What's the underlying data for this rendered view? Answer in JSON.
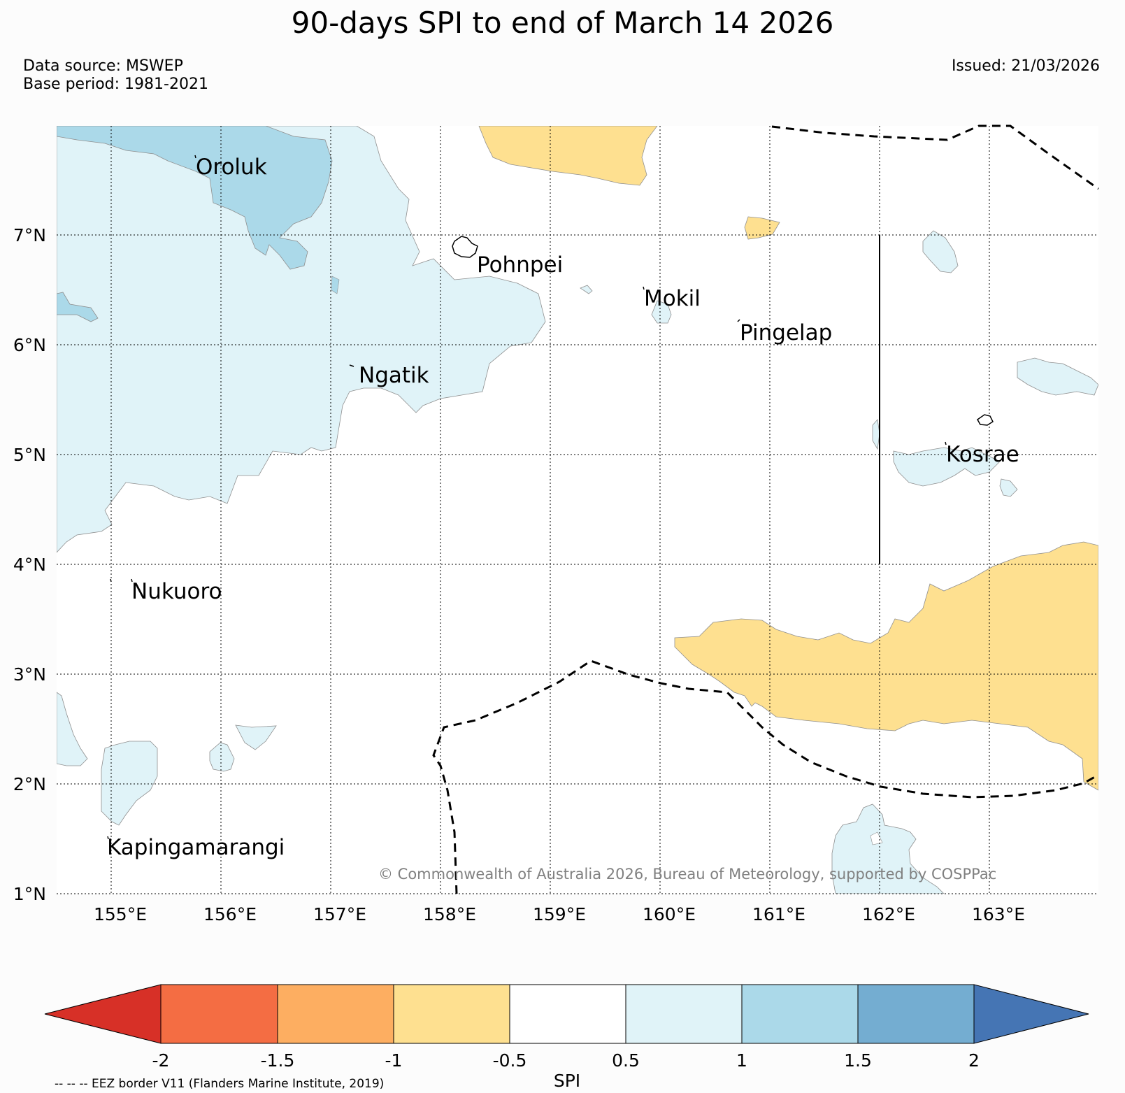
{
  "title": "90-days SPI to end of March 14 2026",
  "data_source": "Data source: MSWEP",
  "base_period": "Base period: 1981-2021",
  "issued": "Issued: 21/03/2026",
  "map": {
    "lon_range": [
      154.5,
      164.0
    ],
    "lat_range": [
      1.0,
      8.0
    ],
    "lon_ticks": [
      {
        "value": 155,
        "label": "155°E"
      },
      {
        "value": 156,
        "label": "156°E"
      },
      {
        "value": 157,
        "label": "157°E"
      },
      {
        "value": 158,
        "label": "158°E"
      },
      {
        "value": 159,
        "label": "159°E"
      },
      {
        "value": 160,
        "label": "160°E"
      },
      {
        "value": 161,
        "label": "161°E"
      },
      {
        "value": 162,
        "label": "162°E"
      },
      {
        "value": 163,
        "label": "163°E"
      }
    ],
    "lat_ticks": [
      {
        "value": 7,
        "label": "7°N"
      },
      {
        "value": 6,
        "label": "6°N"
      },
      {
        "value": 5,
        "label": "5°N"
      },
      {
        "value": 4,
        "label": "4°N"
      },
      {
        "value": 3,
        "label": "3°N"
      },
      {
        "value": 2,
        "label": "2°N"
      },
      {
        "value": 1,
        "label": "1°N"
      }
    ],
    "islands": [
      {
        "name": "Oroluk",
        "lon": 155.75,
        "lat": 7.6
      },
      {
        "name": "Pohnpei",
        "lon": 158.25,
        "lat": 6.88
      },
      {
        "name": "Mokil",
        "lon": 159.8,
        "lat": 6.6
      },
      {
        "name": "Pingelap",
        "lon": 160.7,
        "lat": 6.2
      },
      {
        "name": "Ngatik",
        "lon": 157.2,
        "lat": 5.8
      },
      {
        "name": "Kosrae",
        "lon": 162.55,
        "lat": 5.1
      },
      {
        "name": "Nukuoro",
        "lon": 154.95,
        "lat": 3.85
      },
      {
        "name": "Kapingamarangi",
        "lon": 154.95,
        "lat": 1.55
      }
    ],
    "copyright": "© Commonwealth of Australia 2026, Bureau of Meteorology, supported by COSPPac"
  },
  "colorbar": {
    "label": "SPI",
    "ticks": [
      "-2",
      "-1.5",
      "-1",
      "-0.5",
      "0.5",
      "1",
      "1.5",
      "2"
    ],
    "colors": {
      "lt_m2": "#d73027",
      "m2_m15": "#f46d43",
      "m15_m1": "#fdae61",
      "m1_m05": "#fee090",
      "m05_05": "#ffffff",
      "p05_1": "#e0f3f8",
      "p1_15": "#abd9e9",
      "p15_2": "#74add1",
      "gt_2": "#4575b4"
    }
  },
  "eez_note": "-- -- -- EEZ border V11 (Flanders Marine Institute, 2019)"
}
